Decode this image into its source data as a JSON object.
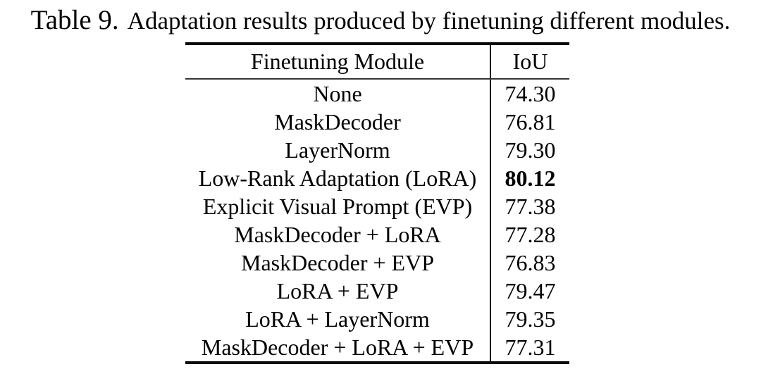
{
  "title": {
    "label": "Table 9.",
    "caption": "Adaptation results produced by finetuning different modules."
  },
  "table": {
    "columns": [
      "Finetuning Module",
      "IoU"
    ],
    "rows": [
      {
        "module": "None",
        "iou": "74.30"
      },
      {
        "module": "MaskDecoder",
        "iou": "76.81"
      },
      {
        "module": "LayerNorm",
        "iou": "79.30"
      },
      {
        "module": "Low-Rank Adaptation (LoRA)",
        "iou": "80.12"
      },
      {
        "module": "Explicit Visual Prompt (EVP)",
        "iou": "77.38"
      },
      {
        "module": "MaskDecoder + LoRA",
        "iou": "77.28"
      },
      {
        "module": "MaskDecoder + EVP",
        "iou": "76.83"
      },
      {
        "module": "LoRA + EVP",
        "iou": "79.47"
      },
      {
        "module": "LoRA + LayerNorm",
        "iou": "79.35"
      },
      {
        "module": "MaskDecoder + LoRA + EVP",
        "iou": "77.31"
      }
    ],
    "best_row_index": 3
  },
  "colors": {
    "text": "#000000",
    "background": "#ffffff",
    "rule": "#0a0a0a"
  }
}
